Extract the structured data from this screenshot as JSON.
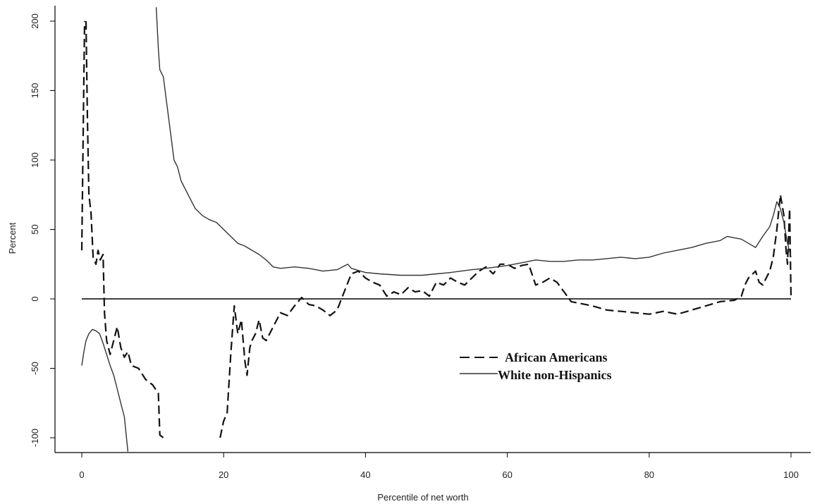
{
  "chart_data": {
    "type": "line",
    "title": "",
    "xlabel": "Percentile of net worth",
    "ylabel": "Percent",
    "xlim": [
      0,
      100
    ],
    "ylim": [
      -100,
      200
    ],
    "x_ticks": [
      0,
      20,
      40,
      60,
      80,
      100
    ],
    "x_tick_labels": [
      "0",
      "20",
      "40",
      "60",
      "80",
      "100"
    ],
    "y_ticks": [
      -100,
      -50,
      0,
      50,
      100,
      150,
      200
    ],
    "y_tick_labels": [
      "-100",
      "-50",
      "0",
      "50",
      "100",
      "150",
      "200"
    ],
    "legend": {
      "placement": "center-right"
    },
    "colors": {
      "african_americans": "#111111",
      "white_non_hispanics": "#333333",
      "zero_line": "#000000"
    },
    "series": [
      {
        "name": "African Americans",
        "style": "dashed",
        "segments": [
          [
            [
              0.0,
              35
            ],
            [
              0.2,
              120
            ],
            [
              0.4,
              200
            ]
          ],
          [
            [
              0.6,
              200
            ],
            [
              0.8,
              130
            ],
            [
              1.0,
              75
            ],
            [
              1.3,
              62
            ],
            [
              1.6,
              30
            ],
            [
              2.0,
              25
            ],
            [
              2.3,
              35
            ],
            [
              2.6,
              28
            ],
            [
              3.0,
              32
            ],
            [
              3.2,
              -10
            ],
            [
              3.5,
              -30
            ],
            [
              4.0,
              -40
            ],
            [
              4.5,
              -30
            ],
            [
              5.0,
              -20
            ],
            [
              5.5,
              -35
            ],
            [
              6.0,
              -42
            ],
            [
              6.5,
              -38
            ],
            [
              7.0,
              -48
            ],
            [
              8.0,
              -50
            ],
            [
              9.0,
              -58
            ],
            [
              10.0,
              -62
            ],
            [
              10.8,
              -68
            ],
            [
              11.0,
              -98
            ],
            [
              11.5,
              -100
            ]
          ],
          [
            [
              19.5,
              -100
            ],
            [
              20.0,
              -88
            ],
            [
              20.5,
              -82
            ],
            [
              21.0,
              -40
            ],
            [
              21.5,
              -5
            ],
            [
              22.0,
              -25
            ],
            [
              22.5,
              -15
            ],
            [
              23.0,
              -45
            ],
            [
              23.3,
              -55
            ],
            [
              23.7,
              -35
            ],
            [
              24.0,
              -30
            ],
            [
              24.5,
              -25
            ],
            [
              25.0,
              -15
            ],
            [
              25.5,
              -28
            ],
            [
              26.0,
              -30
            ],
            [
              27.0,
              -20
            ],
            [
              28.0,
              -10
            ],
            [
              29.0,
              -12
            ],
            [
              30.0,
              -5
            ],
            [
              31.0,
              1
            ],
            [
              32.0,
              -4
            ],
            [
              33.0,
              -5
            ],
            [
              34.0,
              -8
            ],
            [
              35.0,
              -12
            ],
            [
              36.0,
              -8
            ],
            [
              37.0,
              5
            ],
            [
              38.0,
              18
            ],
            [
              39.0,
              20
            ],
            [
              40.0,
              15
            ],
            [
              41.0,
              12
            ],
            [
              42.0,
              10
            ],
            [
              43.0,
              2
            ],
            [
              44.0,
              5
            ],
            [
              45.0,
              3
            ],
            [
              46.0,
              8
            ],
            [
              47.0,
              5
            ],
            [
              48.0,
              6
            ],
            [
              49.0,
              2
            ],
            [
              50.0,
              12
            ],
            [
              51.0,
              10
            ],
            [
              52.0,
              15
            ],
            [
              53.0,
              12
            ],
            [
              54.0,
              10
            ],
            [
              55.0,
              15
            ],
            [
              56.0,
              20
            ],
            [
              57.0,
              23
            ],
            [
              58.0,
              18
            ],
            [
              59.0,
              25
            ],
            [
              60.0,
              25
            ],
            [
              61.0,
              22
            ],
            [
              62.0,
              24
            ],
            [
              63.0,
              25
            ],
            [
              64.0,
              10
            ],
            [
              65.0,
              12
            ],
            [
              66.0,
              15
            ],
            [
              67.0,
              12
            ],
            [
              68.0,
              5
            ],
            [
              69.0,
              -2
            ],
            [
              70.0,
              -3
            ],
            [
              72.0,
              -5
            ],
            [
              74.0,
              -8
            ],
            [
              76.0,
              -9
            ],
            [
              78.0,
              -10
            ],
            [
              80.0,
              -11
            ],
            [
              82.0,
              -9
            ],
            [
              84.0,
              -11
            ],
            [
              86.0,
              -8
            ],
            [
              88.0,
              -5
            ],
            [
              90.0,
              -2
            ],
            [
              92.0,
              -1
            ],
            [
              93.0,
              2
            ],
            [
              93.5,
              10
            ],
            [
              94.0,
              15
            ],
            [
              95.0,
              20
            ],
            [
              95.5,
              12
            ],
            [
              96.0,
              10
            ],
            [
              97.0,
              20
            ],
            [
              97.5,
              30
            ],
            [
              98.0,
              50
            ],
            [
              98.5,
              75
            ],
            [
              99.0,
              60
            ],
            [
              99.3,
              35
            ],
            [
              99.5,
              25
            ],
            [
              99.8,
              65
            ],
            [
              100.0,
              0
            ]
          ]
        ]
      },
      {
        "name": "White non-Hispanics",
        "style": "solid",
        "segments": [
          [
            [
              0.0,
              -48
            ],
            [
              0.3,
              -38
            ],
            [
              0.6,
              -30
            ],
            [
              1.0,
              -25
            ],
            [
              1.5,
              -22
            ],
            [
              2.0,
              -23
            ],
            [
              2.5,
              -25
            ],
            [
              3.0,
              -32
            ],
            [
              3.5,
              -40
            ],
            [
              4.0,
              -48
            ],
            [
              4.5,
              -55
            ],
            [
              5.0,
              -65
            ],
            [
              5.5,
              -75
            ],
            [
              6.0,
              -85
            ],
            [
              6.3,
              -100
            ],
            [
              6.5,
              -110
            ]
          ],
          [
            [
              10.5,
              210
            ],
            [
              10.8,
              180
            ],
            [
              11.0,
              165
            ],
            [
              11.5,
              160
            ],
            [
              12.0,
              140
            ],
            [
              12.5,
              120
            ],
            [
              13.0,
              100
            ],
            [
              13.5,
              95
            ],
            [
              14.0,
              85
            ],
            [
              14.5,
              80
            ],
            [
              15.0,
              75
            ],
            [
              16.0,
              65
            ],
            [
              17.0,
              60
            ],
            [
              18.0,
              57
            ],
            [
              19.0,
              55
            ],
            [
              20.0,
              50
            ],
            [
              21.0,
              45
            ],
            [
              22.0,
              40
            ],
            [
              23.0,
              38
            ],
            [
              24.0,
              35
            ],
            [
              25.0,
              32
            ],
            [
              26.0,
              28
            ],
            [
              27.0,
              23
            ],
            [
              28.0,
              22
            ],
            [
              30.0,
              23
            ],
            [
              32.0,
              22
            ],
            [
              34.0,
              20
            ],
            [
              36.0,
              21
            ],
            [
              37.5,
              25
            ],
            [
              38.0,
              22
            ],
            [
              40.0,
              19
            ],
            [
              42.0,
              18
            ],
            [
              45.0,
              17
            ],
            [
              48.0,
              17
            ],
            [
              50.0,
              18
            ],
            [
              52.0,
              19
            ],
            [
              55.0,
              21
            ],
            [
              57.0,
              22
            ],
            [
              60.0,
              24
            ],
            [
              62.0,
              26
            ],
            [
              64.0,
              28
            ],
            [
              66.0,
              27
            ],
            [
              68.0,
              27
            ],
            [
              70.0,
              28
            ],
            [
              72.0,
              28
            ],
            [
              74.0,
              29
            ],
            [
              76.0,
              30
            ],
            [
              78.0,
              29
            ],
            [
              80.0,
              30
            ],
            [
              82.0,
              33
            ],
            [
              84.0,
              35
            ],
            [
              86.0,
              37
            ],
            [
              88.0,
              40
            ],
            [
              90.0,
              42
            ],
            [
              91.0,
              45
            ],
            [
              92.0,
              44
            ],
            [
              93.0,
              43
            ],
            [
              94.0,
              40
            ],
            [
              95.0,
              37
            ],
            [
              96.0,
              45
            ],
            [
              97.0,
              52
            ],
            [
              97.5,
              60
            ],
            [
              98.0,
              70
            ],
            [
              98.5,
              65
            ],
            [
              99.0,
              55
            ],
            [
              99.5,
              40
            ],
            [
              100.0,
              30
            ]
          ]
        ]
      }
    ]
  }
}
